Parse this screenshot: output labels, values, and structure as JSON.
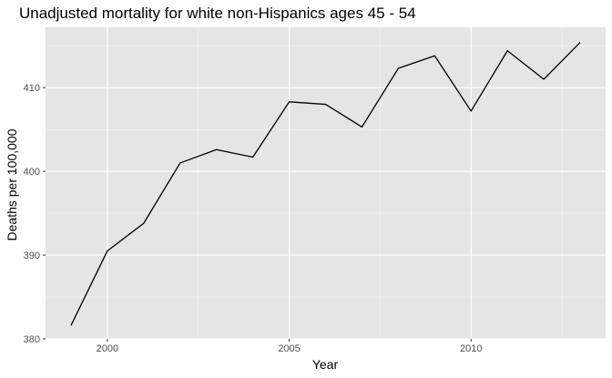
{
  "chart_data": {
    "type": "line",
    "title": "Unadjusted mortality for white non-Hispanics ages 45 - 54",
    "xlabel": "Year",
    "ylabel": "Deaths per 100,000",
    "x": [
      1999,
      2000,
      2001,
      2002,
      2003,
      2004,
      2005,
      2006,
      2007,
      2008,
      2009,
      2010,
      2011,
      2012,
      2013
    ],
    "series": [
      {
        "values": [
          381.6,
          390.5,
          393.8,
          401.0,
          402.6,
          401.7,
          408.3,
          408.0,
          405.3,
          412.3,
          413.8,
          407.2,
          414.4,
          411.0,
          415.4
        ]
      }
    ],
    "xlim": [
      1998.3,
      2013.7
    ],
    "ylim": [
      380,
      417.2
    ],
    "x_major_ticks": [
      2000,
      2005,
      2010
    ],
    "x_minor_ticks": [
      1997.5,
      2002.5,
      2007.5,
      2012.5
    ],
    "y_major_ticks": [
      380,
      390,
      400,
      410
    ],
    "y_minor_ticks": [
      385,
      395,
      405,
      415
    ],
    "grid": true,
    "legend": "none",
    "colors": {
      "panel_background": "#e5e5e5",
      "grid_major": "#ffffff",
      "grid_minor": "#f2f2f2",
      "line": "#000000",
      "tick_mark": "#333333"
    }
  }
}
